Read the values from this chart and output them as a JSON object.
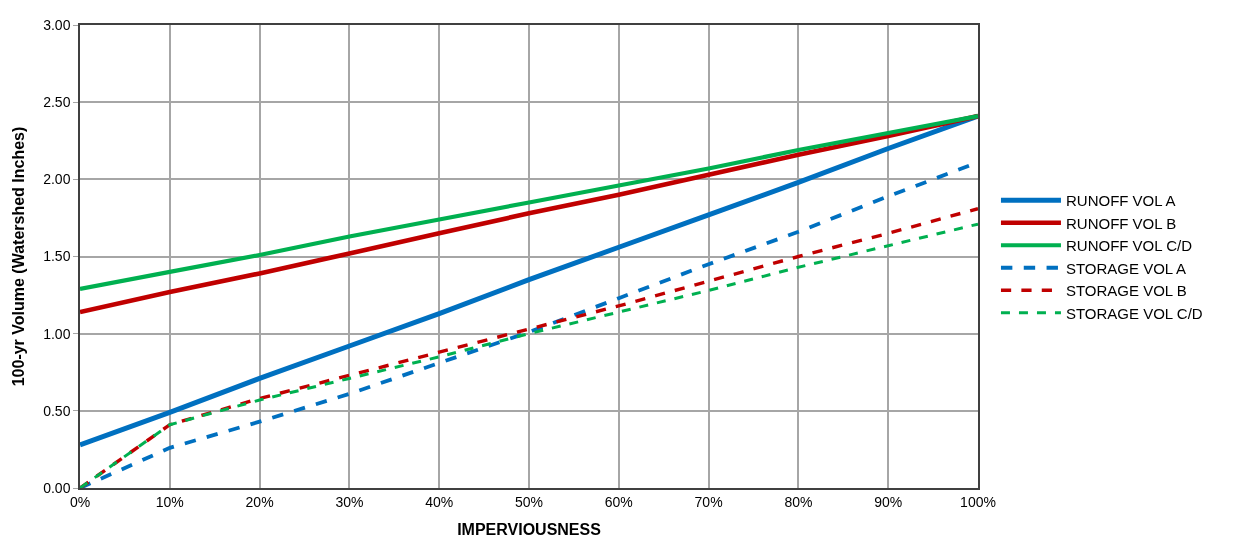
{
  "chart_data": {
    "type": "line",
    "xlabel": "IMPERVIOUSNESS",
    "ylabel": "100-yr Volume (Watershed Inches)",
    "x": [
      0,
      10,
      20,
      30,
      40,
      50,
      60,
      70,
      80,
      90,
      100
    ],
    "xlim": [
      0,
      100
    ],
    "xticks": [
      {
        "value": 0,
        "label": "0%"
      },
      {
        "value": 10,
        "label": "10%"
      },
      {
        "value": 20,
        "label": "20%"
      },
      {
        "value": 30,
        "label": "30%"
      },
      {
        "value": 40,
        "label": "40%"
      },
      {
        "value": 50,
        "label": "50%"
      },
      {
        "value": 60,
        "label": "60%"
      },
      {
        "value": 70,
        "label": "70%"
      },
      {
        "value": 80,
        "label": "80%"
      },
      {
        "value": 90,
        "label": "90%"
      },
      {
        "value": 100,
        "label": "100%"
      }
    ],
    "ylim": [
      0,
      3
    ],
    "yticks": [
      {
        "value": 0,
        "label": "0.00"
      },
      {
        "value": 0.5,
        "label": "0.50"
      },
      {
        "value": 1,
        "label": "1.00"
      },
      {
        "value": 1.5,
        "label": "1.50"
      },
      {
        "value": 2,
        "label": "2.00"
      },
      {
        "value": 2.5,
        "label": "2.50"
      },
      {
        "value": 3,
        "label": "3.00"
      }
    ],
    "grid": true,
    "legend": "right",
    "marker": "none",
    "series": [
      {
        "name": "RUNOFF VOL A",
        "color": "#0070c0",
        "line_style": "solid",
        "values": [
          0.28,
          0.49,
          0.71,
          0.92,
          1.13,
          1.35,
          1.56,
          1.77,
          1.98,
          2.2,
          2.41
        ]
      },
      {
        "name": "RUNOFF VOL B",
        "color": "#c00000",
        "line_style": "solid",
        "values": [
          1.14,
          1.27,
          1.39,
          1.52,
          1.65,
          1.78,
          1.9,
          2.03,
          2.16,
          2.28,
          2.41
        ]
      },
      {
        "name": "RUNOFF VOL C/D",
        "color": "#00b050",
        "line_style": "solid",
        "values": [
          1.29,
          1.4,
          1.51,
          1.63,
          1.74,
          1.85,
          1.96,
          2.07,
          2.19,
          2.3,
          2.41
        ]
      },
      {
        "name": "STORAGE VOL A",
        "color": "#0070c0",
        "line_style": "dashed",
        "values": [
          0,
          0.26,
          0.43,
          0.61,
          0.81,
          1.01,
          1.23,
          1.45,
          1.66,
          1.89,
          2.11
        ]
      },
      {
        "name": "STORAGE VOL B",
        "color": "#c00000",
        "line_style": "dashed",
        "values": [
          0,
          0.41,
          0.58,
          0.73,
          0.88,
          1.03,
          1.18,
          1.34,
          1.5,
          1.65,
          1.81
        ]
      },
      {
        "name": "STORAGE VOL C/D",
        "color": "#00b050",
        "line_style": "dashed",
        "values": [
          0,
          0.41,
          0.57,
          0.71,
          0.85,
          1.0,
          1.14,
          1.28,
          1.43,
          1.57,
          1.71
        ]
      }
    ]
  }
}
